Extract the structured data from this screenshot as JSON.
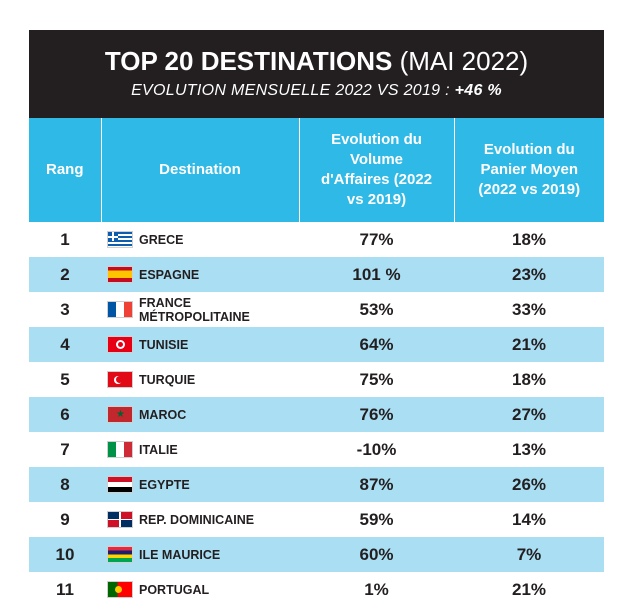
{
  "header": {
    "title_bold": "TOP 20 DESTINATIONS",
    "title_light": "(MAI 2022)",
    "subtitle_text": "EVOLUTION MENSUELLE 2022 VS 2019 :",
    "subtitle_value": "+46 %"
  },
  "table": {
    "columns": [
      "Rang",
      "Destination",
      "Evolution du Volume d'Affaires (2022 vs 2019)",
      "Evolution du Panier Moyen (2022 vs 2019)"
    ],
    "rows": [
      {
        "rank": "1",
        "flag": "greece-flag-icon",
        "destination": "GRECE",
        "volume": "77%",
        "panier": "18%"
      },
      {
        "rank": "2",
        "flag": "spain-flag-icon",
        "destination": "ESPAGNE",
        "volume": "101 %",
        "panier": "23%"
      },
      {
        "rank": "3",
        "flag": "france-flag-icon",
        "destination": "FRANCE MÉTROPOLITAINE",
        "volume": "53%",
        "panier": "33%"
      },
      {
        "rank": "4",
        "flag": "tunisia-flag-icon",
        "destination": "TUNISIE",
        "volume": "64%",
        "panier": "21%"
      },
      {
        "rank": "5",
        "flag": "turkey-flag-icon",
        "destination": "TURQUIE",
        "volume": "75%",
        "panier": "18%"
      },
      {
        "rank": "6",
        "flag": "morocco-flag-icon",
        "destination": "MAROC",
        "volume": "76%",
        "panier": "27%"
      },
      {
        "rank": "7",
        "flag": "italy-flag-icon",
        "destination": "ITALIE",
        "volume": "-10%",
        "panier": "13%"
      },
      {
        "rank": "8",
        "flag": "egypt-flag-icon",
        "destination": "EGYPTE",
        "volume": "87%",
        "panier": "26%"
      },
      {
        "rank": "9",
        "flag": "dominican-republic-flag-icon",
        "destination": "REP. DOMINICAINE",
        "volume": "59%",
        "panier": "14%"
      },
      {
        "rank": "10",
        "flag": "mauritius-flag-icon",
        "destination": "ILE MAURICE",
        "volume": "60%",
        "panier": "7%"
      },
      {
        "rank": "11",
        "flag": "portugal-flag-icon",
        "destination": "PORTUGAL",
        "volume": "1%",
        "panier": "21%"
      }
    ]
  },
  "colors": {
    "header_bg": "#231f20",
    "column_header_bg": "#2fb9e6",
    "alt_row_bg": "#a9def3"
  }
}
